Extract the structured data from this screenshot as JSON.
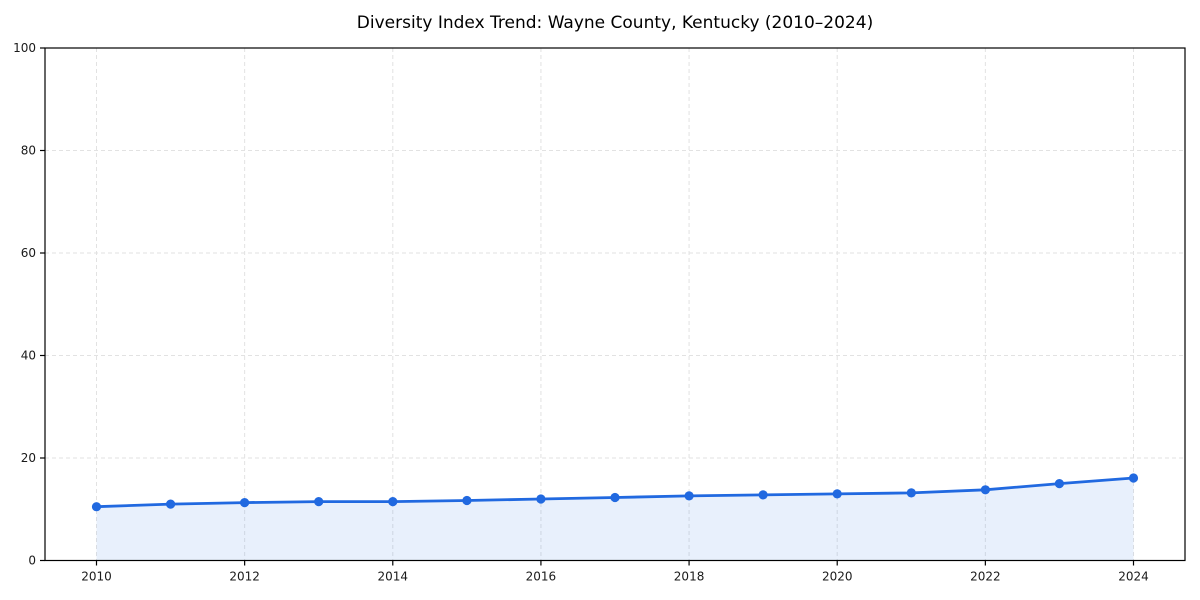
{
  "page": {
    "title": "Diversity Index Trend: Wayne County, Kentucky (2010–2024)"
  },
  "chart_data": {
    "type": "area",
    "title": "Diversity Index Trend: Wayne County, Kentucky (2010–2024)",
    "x": [
      2010,
      2011,
      2012,
      2013,
      2014,
      2015,
      2016,
      2017,
      2018,
      2019,
      2020,
      2021,
      2022,
      2023,
      2024
    ],
    "series": [
      {
        "name": "Diversity Index",
        "values": [
          10.5,
          11.0,
          11.3,
          11.5,
          11.5,
          11.7,
          12.0,
          12.3,
          12.6,
          12.8,
          13.0,
          13.2,
          13.8,
          15.0,
          16.1
        ]
      }
    ],
    "xlabel": "",
    "ylabel": "",
    "ylim": [
      0,
      100
    ],
    "xticks": [
      2010,
      2012,
      2014,
      2016,
      2018,
      2020,
      2022,
      2024
    ],
    "yticks": [
      0,
      20,
      40,
      60,
      80,
      100
    ],
    "grid": true,
    "grid_style": "dashed",
    "legend_position": "none",
    "line_color": "#2169e0",
    "marker_color": "#2169e0",
    "fill_color": "#2169e0",
    "fill_opacity": 0.1,
    "grid_color": "#e2e2e2",
    "axis_color": "#000000",
    "text_color": "#1a1a1a",
    "background_color": "#ffffff"
  }
}
